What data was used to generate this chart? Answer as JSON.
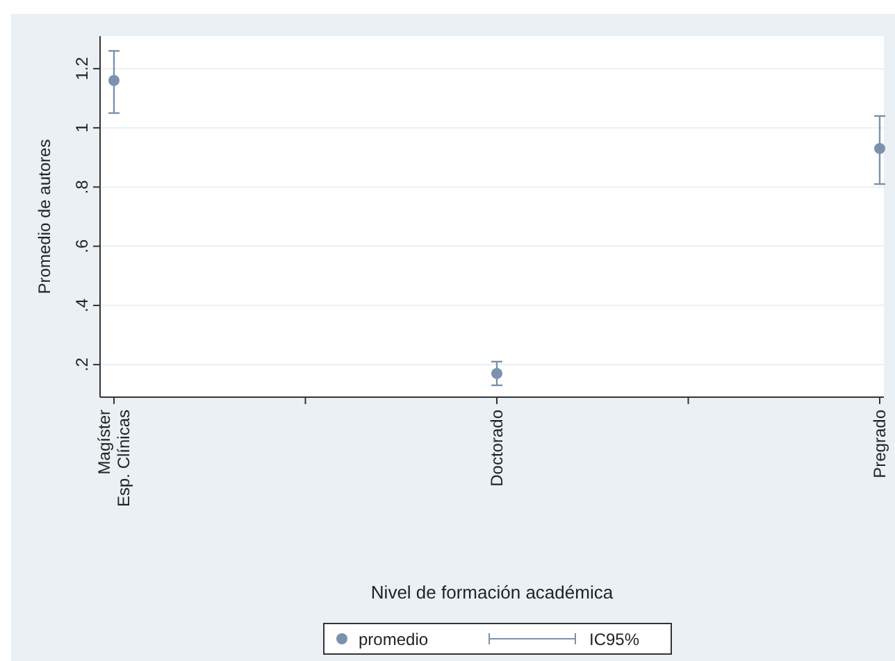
{
  "chart_data": {
    "type": "scatter",
    "ylabel": "Promedio de autores",
    "xlabel": "Nivel de formación académica",
    "categories": [
      "Magíster\nEsp. Clínicas",
      null,
      "Doctorado",
      null,
      "Pregrado"
    ],
    "ylim": [
      0.09,
      1.31
    ],
    "yticks": [
      {
        "value": 0.2,
        "label": ".2"
      },
      {
        "value": 0.4,
        "label": ".4"
      },
      {
        "value": 0.6,
        "label": ".6"
      },
      {
        "value": 0.8,
        "label": ".8"
      },
      {
        "value": 1,
        "label": "1"
      },
      {
        "value": 1.2,
        "label": "1.2"
      }
    ],
    "series": [
      {
        "name": "promedio",
        "color": "#7a92ad",
        "values": [
          1.16,
          null,
          0.17,
          null,
          0.93
        ],
        "errors": [
          [
            1.05,
            1.26
          ],
          null,
          [
            0.13,
            0.21
          ],
          null,
          [
            0.81,
            1.04
          ]
        ]
      }
    ],
    "annotations": [
      "IC95%"
    ],
    "marker": "circle",
    "grid": "y",
    "legend": "bottom"
  }
}
